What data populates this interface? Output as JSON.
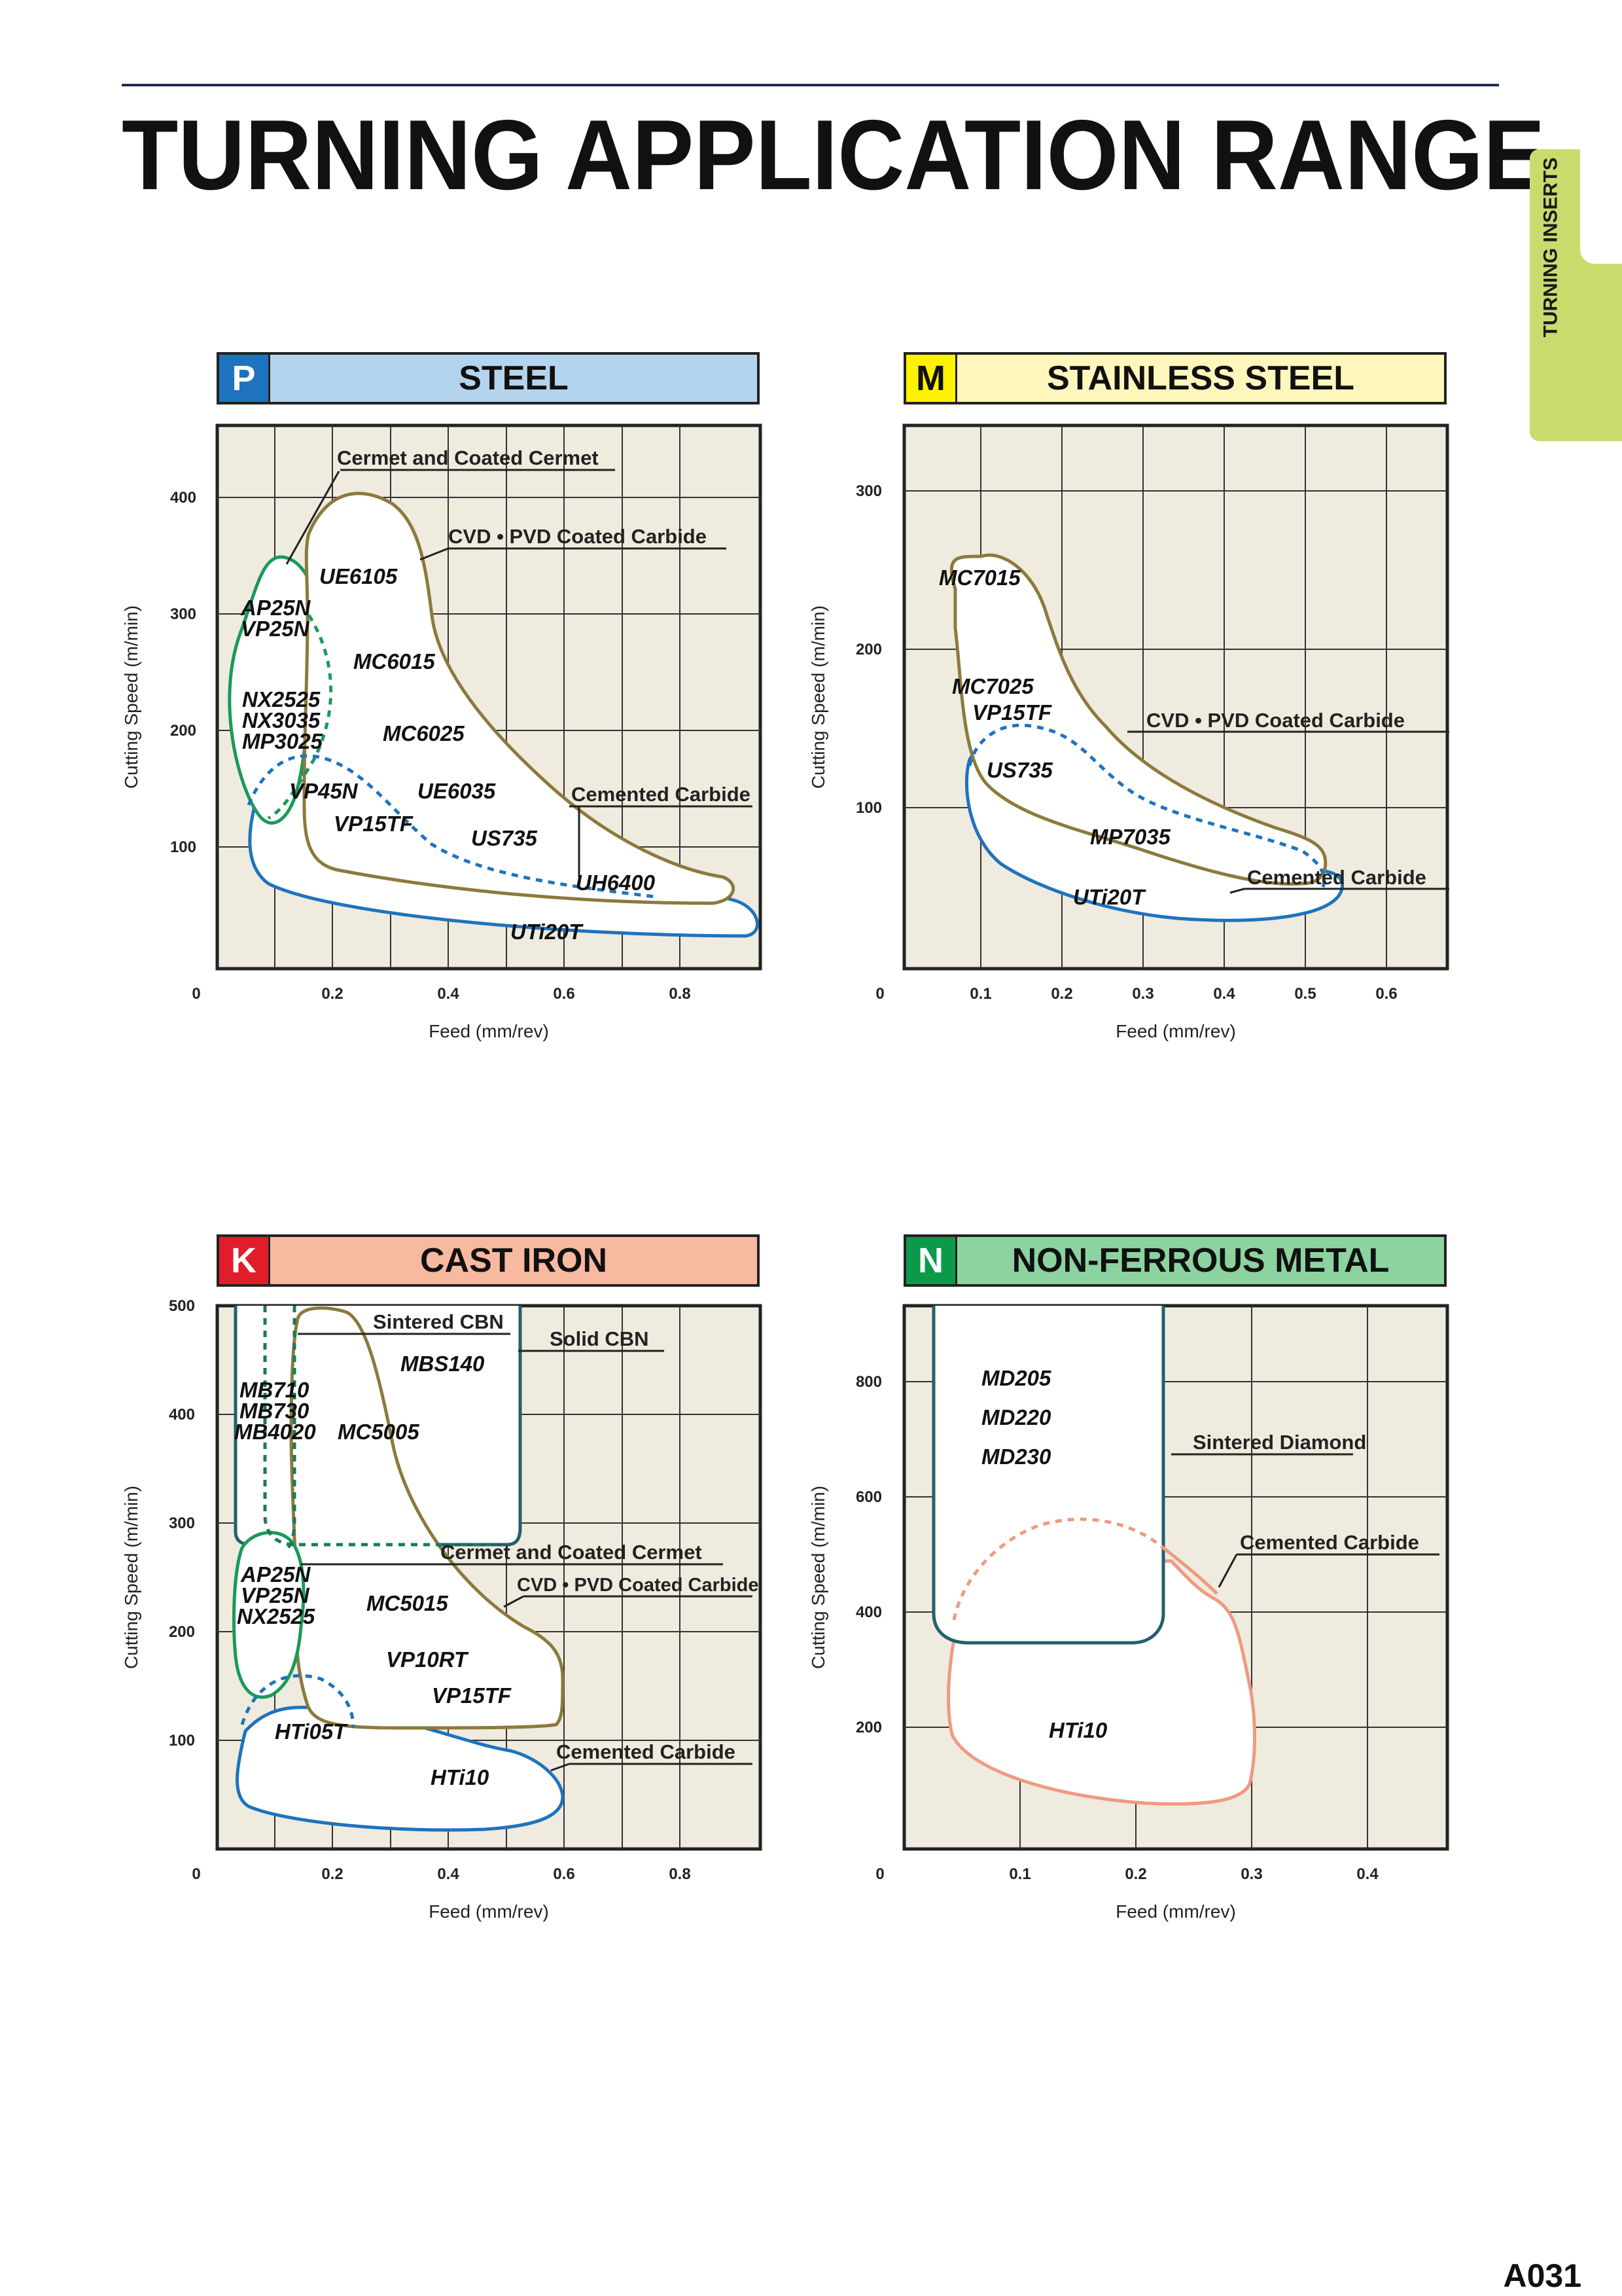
{
  "page": {
    "title": "TURNING APPLICATION RANGE",
    "side_tab": "TURNING INSERTS",
    "page_number": "A031"
  },
  "colors": {
    "steel_header": "#b4d4ee",
    "stainless_header": "#fff6bb",
    "stainless_letter": "#fff200",
    "cast_iron_header": "#f8b9a1",
    "cast_iron_letter": "#e11d2a",
    "nonferrous_header": "#8dd3a0",
    "nonferrous_letter": "#0b9a4a",
    "steel_letter": "#1e73be",
    "plot_bg": "#efebdf",
    "cermet_line": "#1a9a5a",
    "cvd_line": "#8c7a3c",
    "carbide_line": "#1e73be",
    "diamond_line": "#23606a",
    "nonferrous_carbide_line": "#ef9a80"
  },
  "charts": [
    {
      "id": "steel",
      "letter": "P",
      "name": "STEEL",
      "ylabel": "Cutting Speed (m/min)",
      "xlabel": "Feed (mm/rev)",
      "x_ticks": [
        "0",
        "0.2",
        "0.4",
        "0.6",
        "0.8"
      ],
      "y_ticks": [
        "100",
        "200",
        "300",
        "400"
      ],
      "categories": [
        "Cermet and Coated Cermet",
        "CVD • PVD Coated Carbide",
        "Cemented Carbide"
      ],
      "grades": [
        "UE6105",
        "AP25N",
        "VP25N",
        "MC6015",
        "NX2525",
        "NX3035",
        "MP3025",
        "MC6025",
        "VP45N",
        "UE6035",
        "VP15TF",
        "US735",
        "UH6400",
        "UTi20T"
      ]
    },
    {
      "id": "stainless",
      "letter": "M",
      "name": "STAINLESS STEEL",
      "ylabel": "Cutting Speed (m/min)",
      "xlabel": "Feed (mm/rev)",
      "x_ticks": [
        "0",
        "0.1",
        "0.2",
        "0.3",
        "0.4",
        "0.5",
        "0.6"
      ],
      "y_ticks": [
        "100",
        "200",
        "300"
      ],
      "categories": [
        "CVD • PVD Coated Carbide",
        "Cemented Carbide"
      ],
      "grades": [
        "MC7015",
        "MC7025",
        "VP15TF",
        "US735",
        "MP7035",
        "UTi20T"
      ]
    },
    {
      "id": "castiron",
      "letter": "K",
      "name": "CAST IRON",
      "ylabel": "Cutting Speed (m/min)",
      "xlabel": "Feed (mm/rev)",
      "x_ticks": [
        "0",
        "0.2",
        "0.4",
        "0.6",
        "0.8"
      ],
      "y_ticks": [
        "100",
        "200",
        "300",
        "400",
        "500"
      ],
      "categories": [
        "Sintered CBN",
        "Solid CBN",
        "Cermet and Coated Cermet",
        "CVD • PVD Coated Carbide",
        "Cemented Carbide"
      ],
      "grades": [
        "MBS140",
        "MB710",
        "MB730",
        "MB4020",
        "MC5005",
        "AP25N",
        "VP25N",
        "NX2525",
        "MC5015",
        "VP10RT",
        "VP15TF",
        "HTi05T",
        "HTi10"
      ]
    },
    {
      "id": "nonferrous",
      "letter": "N",
      "name": "NON-FERROUS METAL",
      "ylabel": "Cutting Speed (m/min)",
      "xlabel": "Feed (mm/rev)",
      "x_ticks": [
        "0",
        "0.1",
        "0.2",
        "0.3",
        "0.4"
      ],
      "y_ticks": [
        "200",
        "400",
        "600",
        "800"
      ],
      "categories": [
        "Sintered Diamond",
        "Cemented Carbide"
      ],
      "grades": [
        "MD205",
        "MD220",
        "MD230",
        "HTi10"
      ]
    }
  ]
}
